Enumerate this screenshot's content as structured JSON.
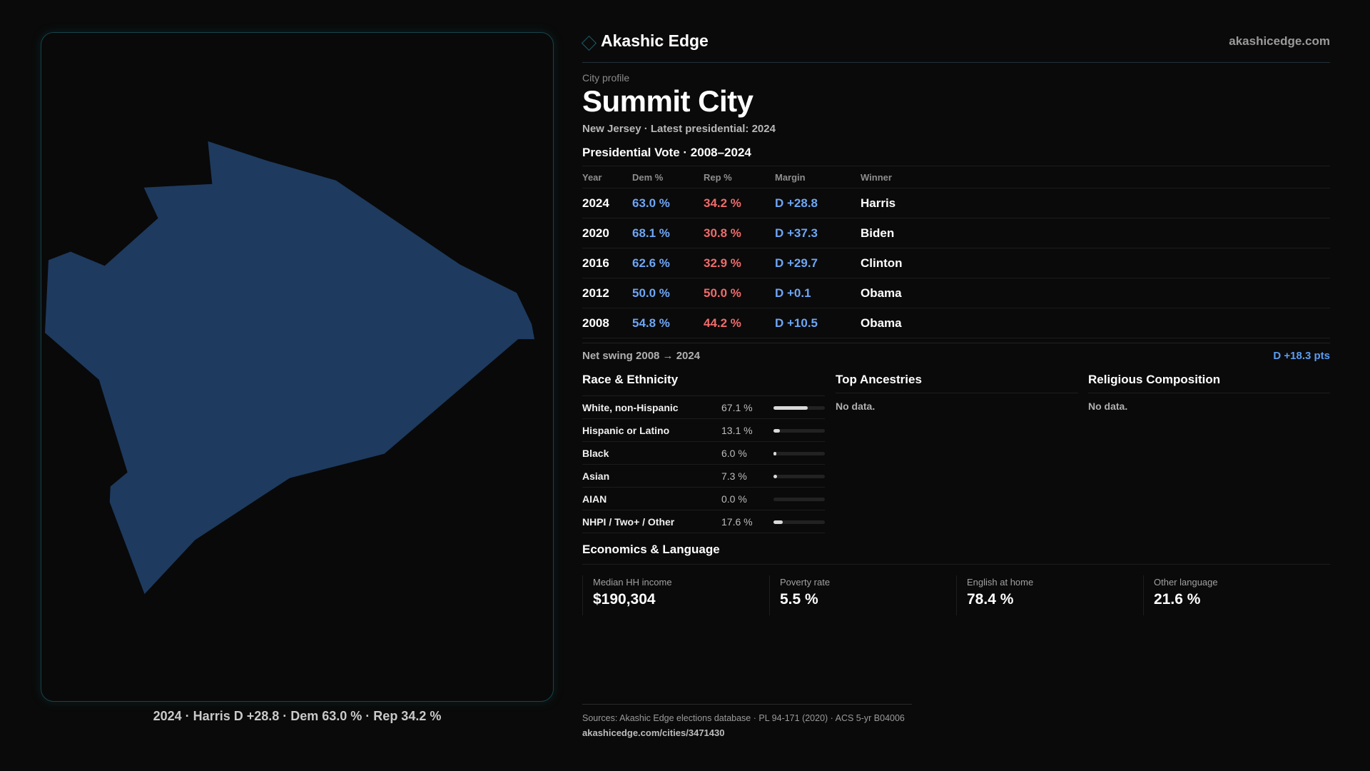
{
  "colors": {
    "background": "#0a0a0a",
    "map_fill": "#1e3a5f",
    "panel_border": "#14454b",
    "dem": "#6ea6f5",
    "rep": "#f06b6b"
  },
  "map": {
    "caption": "2024 · Harris D +28.8 · Dem 63.0 % · Rep 34.2 %"
  },
  "header": {
    "brand_icon": "diamond-outline-icon",
    "brand_name": "Akashic Edge",
    "site": "akashicedge.com"
  },
  "profile": {
    "eyebrow": "City profile",
    "city_name": "Summit City",
    "subtitle": "New Jersey · Latest presidential: 2024"
  },
  "vote": {
    "title": "Presidential Vote · 2008–2024",
    "columns": [
      "Year",
      "Dem %",
      "Rep %",
      "Margin",
      "Winner"
    ],
    "rows": [
      {
        "year": "2024",
        "dem": "63.0 %",
        "rep": "34.2 %",
        "margin": "D +28.8",
        "winner": "Harris"
      },
      {
        "year": "2020",
        "dem": "68.1 %",
        "rep": "30.8 %",
        "margin": "D +37.3",
        "winner": "Biden"
      },
      {
        "year": "2016",
        "dem": "62.6 %",
        "rep": "32.9 %",
        "margin": "D +29.7",
        "winner": "Clinton"
      },
      {
        "year": "2012",
        "dem": "50.0 %",
        "rep": "50.0 %",
        "margin": "D +0.1",
        "winner": "Obama"
      },
      {
        "year": "2008",
        "dem": "54.8 %",
        "rep": "44.2 %",
        "margin": "D +10.5",
        "winner": "Obama"
      }
    ],
    "swing_label": "Net swing 2008 → 2024",
    "swing_value": "D +18.3 pts"
  },
  "race": {
    "title": "Race & Ethnicity",
    "items": [
      {
        "label": "White, non-Hispanic",
        "pct": "67.1 %",
        "value": 67.1
      },
      {
        "label": "Hispanic or Latino",
        "pct": "13.1 %",
        "value": 13.1
      },
      {
        "label": "Black",
        "pct": "6.0 %",
        "value": 6.0
      },
      {
        "label": "Asian",
        "pct": "7.3 %",
        "value": 7.3
      },
      {
        "label": "AIAN",
        "pct": "0.0 %",
        "value": 0.0
      },
      {
        "label": "NHPI / Two+ / Other",
        "pct": "17.6 %",
        "value": 17.6
      }
    ]
  },
  "ancestry": {
    "title": "Top Ancestries",
    "empty": "No data."
  },
  "religion": {
    "title": "Religious Composition",
    "empty": "No data."
  },
  "economics": {
    "title": "Economics & Language",
    "stats": [
      {
        "label": "Median HH income",
        "value": "$190,304"
      },
      {
        "label": "Poverty rate",
        "value": "5.5 %"
      },
      {
        "label": "English at home",
        "value": "78.4 %"
      },
      {
        "label": "Other language",
        "value": "21.6 %"
      }
    ]
  },
  "footer": {
    "sources": "Sources: Akashic Edge elections database · PL 94-171 (2020) · ACS 5-yr B04006",
    "url": "akashicedge.com/cities/3471430"
  }
}
